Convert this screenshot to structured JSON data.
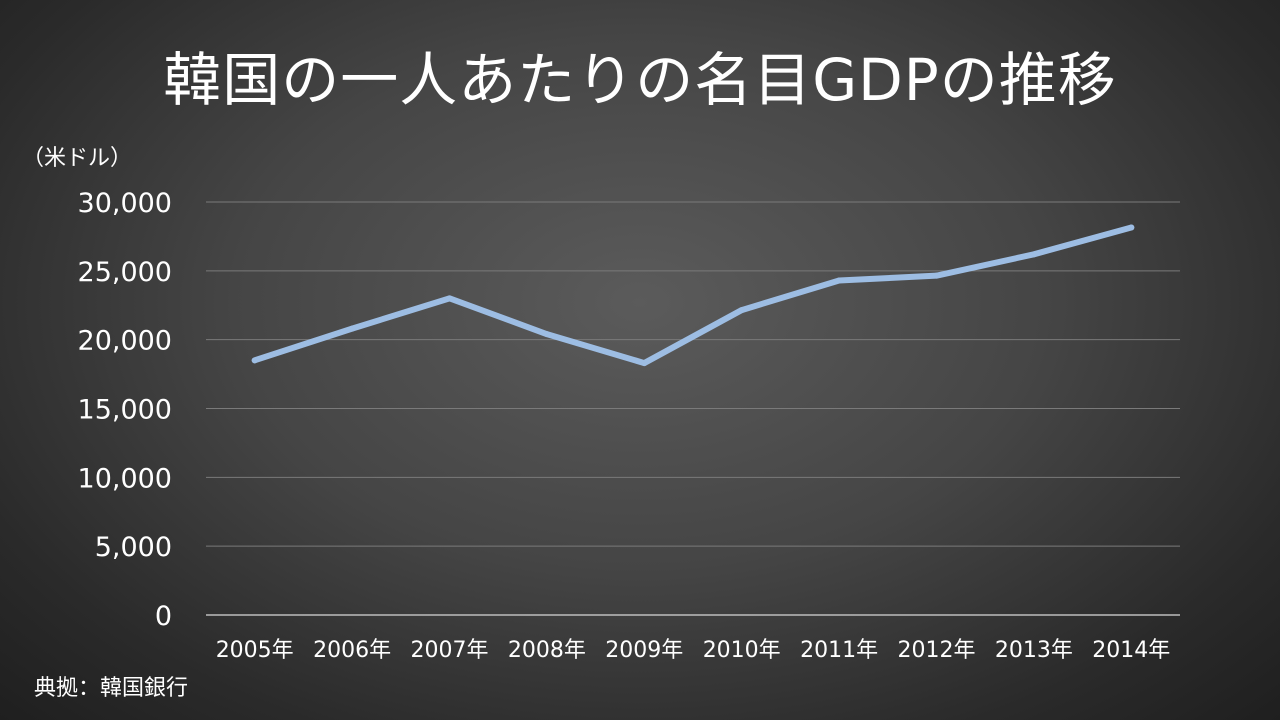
{
  "chart_data": {
    "type": "line",
    "title": "韓国の一人あたりの名目GDPの推移",
    "unit_label": "（米ドル）",
    "source": "典拠：韓国銀行",
    "categories": [
      "2005年",
      "2006年",
      "2007年",
      "2008年",
      "2009年",
      "2010年",
      "2011年",
      "2012年",
      "2013年",
      "2014年"
    ],
    "series": [
      {
        "values": [
          18500,
          20800,
          23000,
          20400,
          18300,
          22150,
          24300,
          24650,
          26200,
          28150
        ],
        "color": "#9dbde3"
      }
    ],
    "ylim": [
      0,
      30000
    ],
    "yticks": [
      0,
      5000,
      10000,
      15000,
      20000,
      25000,
      30000
    ],
    "ytick_labels": [
      "0",
      "5,000",
      "10,000",
      "15,000",
      "20,000",
      "25,000",
      "30,000"
    ],
    "grid": true,
    "legend": "none"
  }
}
